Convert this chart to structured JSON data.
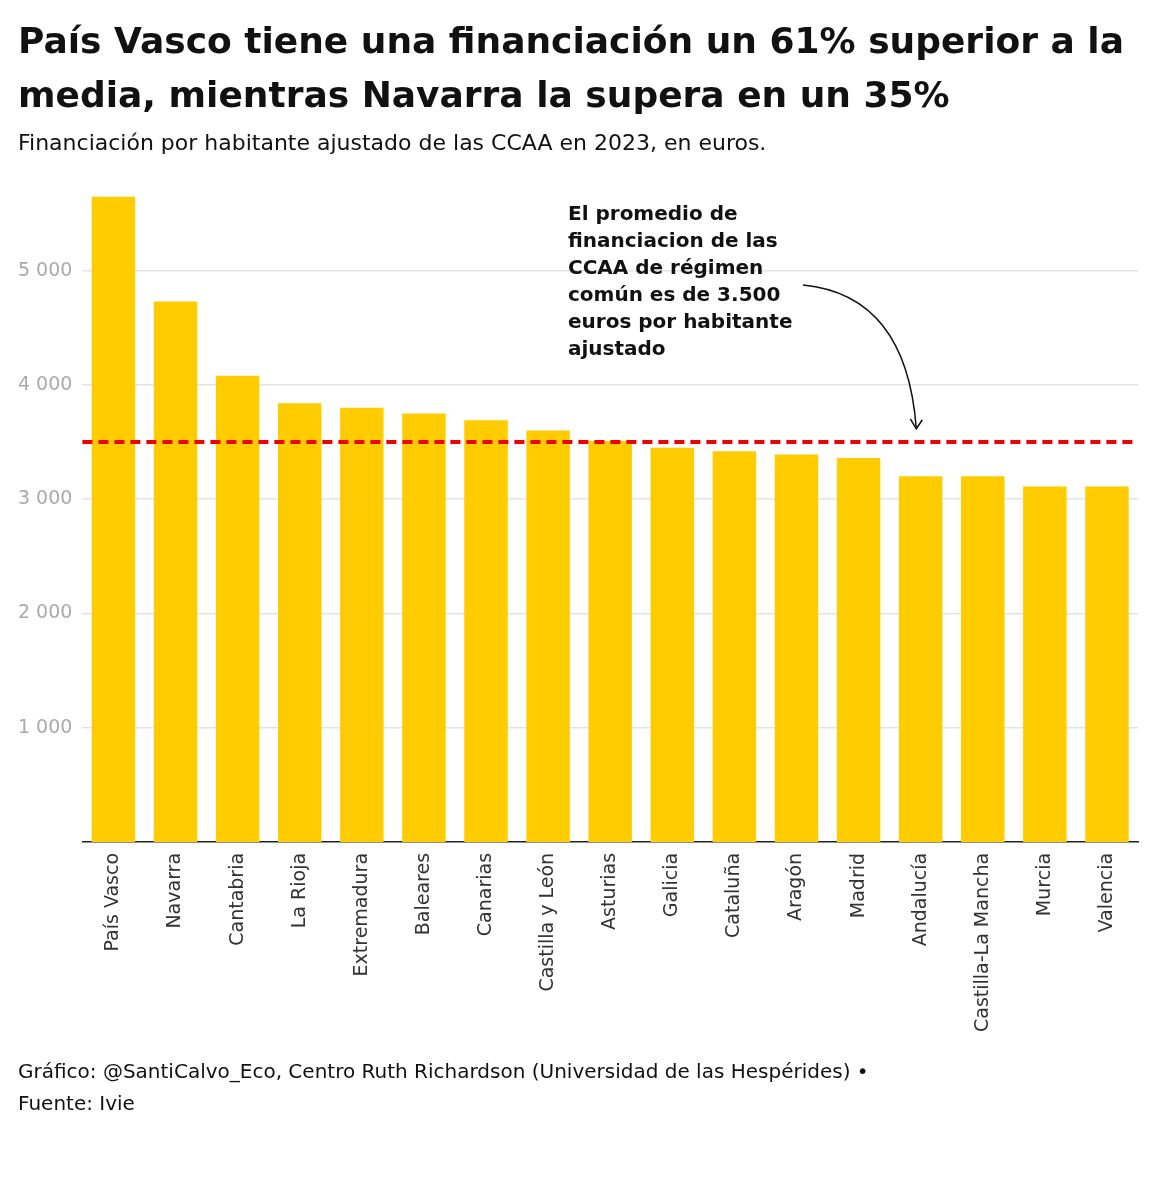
{
  "chart_data": {
    "type": "bar",
    "title": "País Vasco tiene una financiación un 61% superior a la media, mientras Navarra la supera en un 35%",
    "subtitle": "Financiación por habitante ajustado de las CCAA en 2023, en euros.",
    "categories": [
      "País Vasco",
      "Navarra",
      "Cantabria",
      "La Rioja",
      "Extremadura",
      "Baleares",
      "Canarias",
      "Castilla y León",
      "Asturias",
      "Galicia",
      "Cataluña",
      "Aragón",
      "Madrid",
      "Andalucía",
      "Castilla-La Mancha",
      "Murcia",
      "Valencia"
    ],
    "values": [
      5650,
      4730,
      4080,
      3840,
      3800,
      3750,
      3690,
      3600,
      3510,
      3450,
      3420,
      3390,
      3360,
      3200,
      3200,
      3110,
      3110
    ],
    "color": "#ffcc00",
    "ylim": [
      0,
      5650
    ],
    "yticks": [
      {
        "value": 1000,
        "label": "1 000"
      },
      {
        "value": 2000,
        "label": "2 000"
      },
      {
        "value": 3000,
        "label": "3 000"
      },
      {
        "value": 4000,
        "label": "4 000"
      },
      {
        "value": 5000,
        "label": "5 000"
      }
    ],
    "grid": "y",
    "legend": false,
    "ref_lines": [
      {
        "axis": "y",
        "value": 3500,
        "color": "#ee0000",
        "line_style": "dashed"
      }
    ],
    "annotations": [
      "El promedio de financiacion de las CCAA de régimen común es de 3.500 euros por habitante ajustado",
      "Gráfico: @SantiCalvo_Eco, Centro Ruth Richardson (Universidad de las Hespérides) •",
      "Fuente: Ivie"
    ]
  }
}
